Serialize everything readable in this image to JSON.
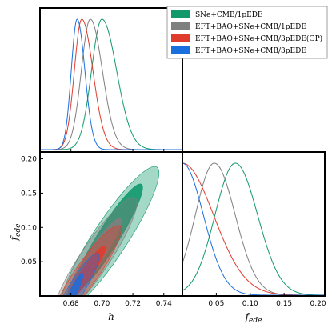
{
  "chart_data": {
    "type": "triangle-plot",
    "xlabel": "h",
    "ylabel": "f_ede",
    "h_axis": {
      "range": [
        0.66,
        0.752
      ],
      "ticks": [
        0.68,
        0.7,
        0.72,
        0.74
      ],
      "tick_labels": [
        "0.68",
        "0.70",
        "0.72",
        "0.74"
      ]
    },
    "fede_axis": {
      "range": [
        0.0,
        0.21
      ],
      "ticks": [
        0.05,
        0.1,
        0.15,
        0.2
      ],
      "tick_labels": [
        "0.05",
        "0.10",
        "0.15",
        "0.20"
      ]
    },
    "legend": {
      "placement": "top-right"
    },
    "series": [
      {
        "name": "SNe+CMB/1pEDE",
        "color": "#11996b",
        "h_peak": 0.7,
        "h_sigma_left": 0.0067,
        "h_sigma_right": 0.0095,
        "fede_peak": 0.078,
        "fede_sigma_left": 0.03,
        "fede_sigma_right": 0.033,
        "contour_68": {
          "h_center": 0.704,
          "fede_center": 0.085,
          "h_halfwidth": 0.0215,
          "fede_halfwidth": 0.078
        },
        "contour_95": {
          "h_center": 0.705,
          "fede_center": 0.083,
          "h_halfwidth": 0.0305,
          "fede_halfwidth": 0.105
        }
      },
      {
        "name": "EFT+BAO+SNe+CMB/1pEDE",
        "color": "#7f7f7f",
        "h_peak": 0.6925,
        "h_sigma_left": 0.0058,
        "h_sigma_right": 0.0078,
        "fede_peak": 0.047,
        "fede_sigma_left": 0.028,
        "fede_sigma_right": 0.031,
        "contour_68": {
          "h_center": 0.695,
          "fede_center": 0.055,
          "h_halfwidth": 0.017,
          "fede_halfwidth": 0.058
        },
        "contour_95": {
          "h_center": 0.6955,
          "fede_center": 0.055,
          "h_halfwidth": 0.026,
          "fede_halfwidth": 0.088
        }
      },
      {
        "name": "EFT+BAO+SNe+CMB/3pEDE(GP)",
        "color": "#e03c2e",
        "h_peak": 0.687,
        "h_sigma_left": 0.0048,
        "h_sigma_right": 0.0072,
        "fede_peak": 0.0,
        "fede_sigma_left": 0.04,
        "fede_sigma_right": 0.046,
        "contour_68": {
          "h_center": 0.69,
          "fede_center": 0.033,
          "h_halfwidth": 0.012,
          "fede_halfwidth": 0.04
        },
        "contour_95": {
          "h_center": 0.6905,
          "fede_center": 0.034,
          "h_halfwidth": 0.021,
          "fede_halfwidth": 0.068
        }
      },
      {
        "name": "EFT+BAO+SNe+CMB/3pEDE",
        "color": "#1a6fdf",
        "h_peak": 0.684,
        "h_sigma_left": 0.0038,
        "h_sigma_right": 0.005,
        "fede_peak": 0.0,
        "fede_sigma_left": 0.03,
        "fede_sigma_right": 0.031,
        "contour_68": {
          "h_center": 0.6815,
          "fede_center": 0.005,
          "h_halfwidth": 0.006,
          "fede_halfwidth": 0.028
        },
        "contour_95": {
          "h_center": 0.684,
          "fede_center": 0.012,
          "h_halfwidth": 0.0135,
          "fede_halfwidth": 0.05
        }
      }
    ]
  }
}
